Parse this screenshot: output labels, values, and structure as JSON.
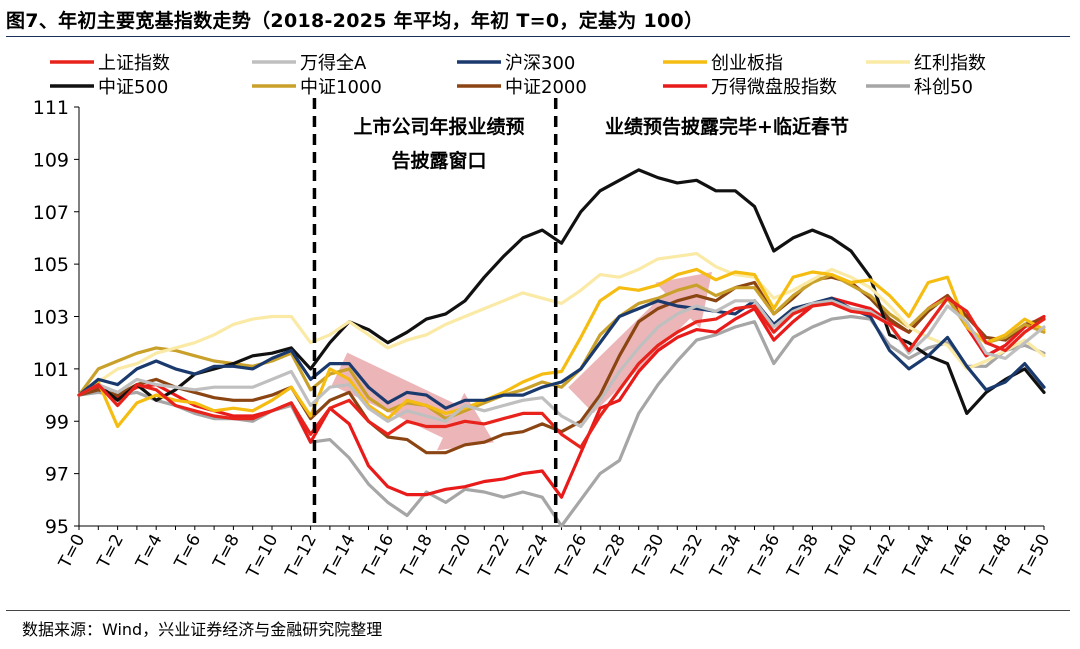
{
  "title": "图7、年初主要宽基指数走势（2018-2025 年平均，年初 T=0，定基为 100）",
  "source": "数据来源：Wind，兴业证券经济与金融研究院整理",
  "chart_data": {
    "type": "line",
    "title": "",
    "xlabel": "",
    "ylabel": "",
    "x": [
      "T=0",
      "T=1",
      "T=2",
      "T=3",
      "T=4",
      "T=5",
      "T=6",
      "T=7",
      "T=8",
      "T=9",
      "T=10",
      "T=11",
      "T=12",
      "T=13",
      "T=14",
      "T=15",
      "T=16",
      "T=17",
      "T=18",
      "T=19",
      "T=20",
      "T=21",
      "T=22",
      "T=23",
      "T=24",
      "T=25",
      "T=26",
      "T=27",
      "T=28",
      "T=29",
      "T=30",
      "T=31",
      "T=32",
      "T=33",
      "T=34",
      "T=35",
      "T=36",
      "T=37",
      "T=38",
      "T=39",
      "T=40",
      "T=41",
      "T=42",
      "T=43",
      "T=44",
      "T=45",
      "T=46",
      "T=47",
      "T=48",
      "T=49",
      "T=50"
    ],
    "x_tick_labels": [
      "T=0",
      "T=2",
      "T=4",
      "T=6",
      "T=8",
      "T=10",
      "T=12",
      "T=14",
      "T=16",
      "T=18",
      "T=20",
      "T=22",
      "T=24",
      "T=26",
      "T=28",
      "T=30",
      "T=32",
      "T=34",
      "T=36",
      "T=38",
      "T=40",
      "T=42",
      "T=44",
      "T=46",
      "T=48",
      "T=50"
    ],
    "ylim": [
      95,
      111
    ],
    "y_ticks": [
      95,
      97,
      99,
      101,
      103,
      105,
      107,
      109,
      111
    ],
    "grid": false,
    "legend": "top",
    "annotations": [
      "上市公司年报业绩预",
      "告披露窗口",
      "业绩预告披露完毕+临近春节"
    ],
    "vlines": [
      12.2,
      24.7
    ],
    "arrows": [
      {
        "from": [
          13.5,
          101.0
        ],
        "to": [
          21.5,
          98.2
        ],
        "color": "#e9a9ad"
      },
      {
        "from": [
          26.0,
          99.8
        ],
        "to": [
          32.8,
          104.7
        ],
        "color": "#e9a9ad"
      }
    ],
    "series": [
      {
        "name": "上证指数",
        "color": "#e8231c",
        "values": [
          100,
          100.4,
          99.6,
          100.4,
          100.2,
          99.6,
          99.4,
          99.2,
          99.1,
          99.1,
          99.4,
          99.7,
          98.5,
          99.5,
          99.8,
          99.0,
          98.5,
          99.0,
          98.8,
          98.8,
          99.0,
          98.9,
          99.1,
          99.3,
          99.3,
          98.5,
          98.0,
          99.2,
          100.2,
          101.2,
          101.9,
          102.4,
          102.8,
          102.9,
          103.3,
          103.4,
          102.4,
          103.1,
          103.4,
          103.5,
          103.2,
          103.1,
          102.7,
          101.7,
          102.7,
          103.7,
          103.2,
          102.0,
          101.7,
          102.4,
          102.9
        ]
      },
      {
        "name": "万得全A",
        "color": "#bfbfbf",
        "values": [
          100,
          100.4,
          100.1,
          100.6,
          100.4,
          100.3,
          100.2,
          100.3,
          100.3,
          100.3,
          100.6,
          100.9,
          99.6,
          100.3,
          100.4,
          99.5,
          99.0,
          99.4,
          99.2,
          99.0,
          99.6,
          99.4,
          99.6,
          99.8,
          99.9,
          99.2,
          98.8,
          99.8,
          100.9,
          101.8,
          102.6,
          103.1,
          103.4,
          103.2,
          103.6,
          103.6,
          102.6,
          103.2,
          103.5,
          103.6,
          103.3,
          103.2,
          102.7,
          101.6,
          102.3,
          103.4,
          102.8,
          101.6,
          101.4,
          102.0,
          102.6
        ]
      },
      {
        "name": "沪深300",
        "color": "#1a3a6e",
        "values": [
          100,
          100.6,
          100.4,
          101.0,
          101.3,
          101.0,
          100.8,
          101.1,
          101.1,
          101.0,
          101.4,
          101.7,
          100.6,
          101.2,
          101.2,
          100.3,
          99.7,
          100.1,
          100.0,
          99.5,
          99.8,
          99.8,
          100.0,
          100.0,
          100.3,
          100.5,
          101.0,
          102.0,
          103.0,
          103.3,
          103.6,
          103.4,
          103.3,
          103.2,
          103.1,
          103.6,
          102.7,
          103.3,
          103.5,
          103.7,
          103.3,
          103.0,
          101.7,
          101.0,
          101.5,
          102.2,
          101.1,
          100.2,
          100.5,
          101.2,
          100.3
        ]
      },
      {
        "name": "创业板指",
        "color": "#f5bc12",
        "values": [
          100,
          100.5,
          98.8,
          99.7,
          100.0,
          99.8,
          99.7,
          99.4,
          99.5,
          99.4,
          99.8,
          100.3,
          99.2,
          101.0,
          100.6,
          99.6,
          99.1,
          99.8,
          99.6,
          99.3,
          99.5,
          99.8,
          100.1,
          100.5,
          100.8,
          100.9,
          102.2,
          103.6,
          104.1,
          104.0,
          104.2,
          104.6,
          104.8,
          104.4,
          104.7,
          104.6,
          103.3,
          104.5,
          104.7,
          104.6,
          104.3,
          104.4,
          103.8,
          103.0,
          104.3,
          104.5,
          102.6,
          102.0,
          102.3,
          102.9,
          102.5
        ]
      },
      {
        "name": "红利指数",
        "color": "#faeaa6",
        "values": [
          100,
          100.5,
          101.0,
          101.2,
          101.6,
          101.8,
          102.0,
          102.3,
          102.7,
          102.9,
          103.0,
          103.0,
          102.0,
          102.3,
          102.8,
          102.3,
          101.8,
          102.1,
          102.3,
          102.7,
          103.0,
          103.3,
          103.6,
          103.9,
          103.7,
          103.5,
          104.0,
          104.6,
          104.5,
          104.8,
          105.2,
          105.3,
          105.4,
          104.9,
          104.6,
          104.5,
          103.7,
          104.0,
          104.4,
          104.8,
          104.5,
          104.1,
          103.4,
          102.6,
          102.2,
          101.9,
          101.0,
          101.3,
          101.7,
          102.1,
          101.5
        ]
      },
      {
        "name": "中证500",
        "color": "#111111",
        "values": [
          100,
          100.4,
          99.8,
          100.4,
          99.8,
          100.2,
          100.8,
          101.0,
          101.2,
          101.5,
          101.6,
          101.8,
          101.0,
          102.0,
          102.8,
          102.5,
          102.0,
          102.4,
          102.9,
          103.1,
          103.6,
          104.5,
          105.3,
          106.0,
          106.3,
          105.8,
          107.0,
          107.8,
          108.2,
          108.6,
          108.3,
          108.1,
          108.2,
          107.8,
          107.8,
          107.2,
          105.5,
          106.0,
          106.3,
          106.0,
          105.5,
          104.5,
          102.3,
          102.0,
          101.5,
          101.2,
          99.3,
          100.1,
          100.6,
          101.0,
          100.1
        ]
      },
      {
        "name": "中证1000",
        "color": "#c9a02a",
        "values": [
          100,
          101.0,
          101.3,
          101.6,
          101.8,
          101.7,
          101.5,
          101.3,
          101.2,
          101.1,
          101.3,
          101.6,
          100.2,
          100.8,
          101.0,
          99.9,
          99.4,
          99.7,
          99.6,
          99.1,
          99.4,
          99.7,
          100.0,
          100.2,
          100.5,
          100.3,
          101.0,
          102.3,
          103.0,
          103.5,
          103.7,
          104.0,
          104.2,
          103.8,
          104.1,
          104.1,
          103.1,
          103.8,
          104.3,
          104.6,
          104.2,
          103.8,
          103.1,
          102.6,
          103.3,
          103.7,
          102.6,
          102.0,
          102.2,
          102.7,
          102.4
        ]
      },
      {
        "name": "中证2000",
        "color": "#8b4513",
        "values": [
          100,
          100.2,
          100.0,
          100.4,
          100.6,
          100.3,
          100.1,
          99.9,
          99.8,
          99.8,
          100.0,
          100.3,
          99.1,
          99.8,
          100.1,
          99.0,
          98.4,
          98.3,
          97.8,
          97.8,
          98.1,
          98.2,
          98.5,
          98.6,
          98.9,
          98.6,
          99.0,
          100.0,
          101.5,
          102.8,
          103.3,
          103.6,
          103.8,
          103.6,
          104.1,
          104.3,
          103.1,
          103.7,
          104.4,
          104.5,
          104.3,
          103.7,
          102.9,
          102.4,
          103.2,
          103.8,
          103.0,
          102.2,
          102.1,
          102.7,
          102.9
        ]
      },
      {
        "name": "万得微盘股指数",
        "color": "#e81a1a",
        "values": [
          100,
          100.3,
          99.9,
          100.3,
          100.4,
          100.0,
          99.6,
          99.4,
          99.2,
          99.2,
          99.4,
          99.7,
          98.2,
          99.5,
          98.9,
          97.3,
          96.5,
          96.2,
          96.2,
          96.4,
          96.5,
          96.7,
          96.8,
          97.0,
          97.1,
          96.1,
          97.8,
          99.5,
          99.8,
          100.9,
          101.7,
          102.2,
          102.5,
          102.4,
          102.9,
          103.3,
          102.1,
          102.8,
          103.4,
          103.7,
          103.5,
          103.3,
          102.8,
          102.4,
          103.3,
          103.8,
          102.6,
          101.5,
          101.9,
          102.6,
          103.0
        ]
      },
      {
        "name": "科创50",
        "color": "#a6a6a6",
        "values": [
          100,
          100.1,
          100.0,
          100.1,
          99.8,
          99.6,
          99.3,
          99.1,
          99.1,
          99.0,
          99.4,
          99.6,
          98.2,
          98.3,
          97.6,
          96.6,
          95.9,
          95.4,
          96.3,
          95.9,
          96.4,
          96.3,
          96.1,
          96.3,
          96.1,
          95.0,
          96.0,
          97.0,
          97.5,
          99.3,
          100.4,
          101.3,
          102.1,
          102.3,
          102.6,
          102.8,
          101.2,
          102.2,
          102.6,
          102.9,
          103.0,
          102.9,
          101.9,
          101.4,
          101.8,
          102.0,
          101.1,
          101.1,
          101.7,
          101.9,
          101.6
        ]
      }
    ]
  }
}
